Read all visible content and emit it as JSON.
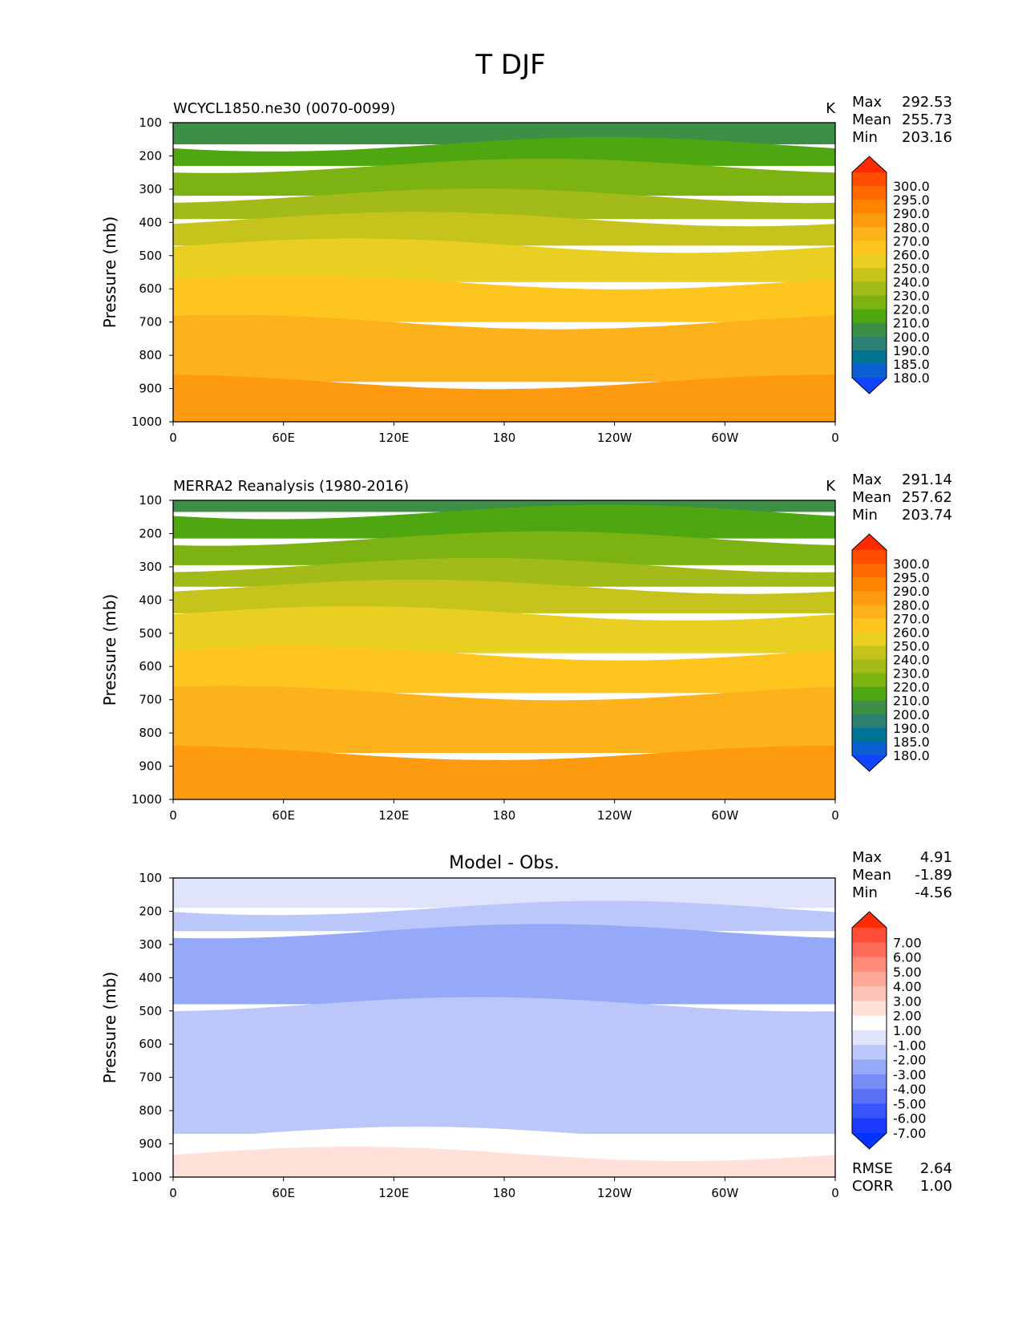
{
  "figure": {
    "title": "T DJF"
  },
  "chart_data": [
    {
      "type": "heatmap",
      "title": "WCYCL1850.ne30 (0070-0099)",
      "units": "K",
      "ylabel": "Pressure (mb)",
      "xlabel": "",
      "xticks": [
        "0",
        "60E",
        "120E",
        "180",
        "120W",
        "60W",
        "0"
      ],
      "yticks": [
        "100",
        "200",
        "300",
        "400",
        "500",
        "600",
        "700",
        "800",
        "900",
        "1000"
      ],
      "ylim": [
        1000,
        100
      ],
      "stats": {
        "max_label": "Max",
        "max": "292.53",
        "mean_label": "Mean",
        "mean": "255.73",
        "min_label": "Min",
        "min": "203.16"
      },
      "colorbar": {
        "labels": [
          "300.0",
          "295.0",
          "290.0",
          "280.0",
          "270.0",
          "260.0",
          "250.0",
          "240.0",
          "230.0",
          "220.0",
          "210.0",
          "200.0",
          "190.0",
          "185.0",
          "180.0"
        ],
        "colors": [
          "#ff2a00",
          "#ff4d00",
          "#ff6a00",
          "#ff8400",
          "#fe9a10",
          "#fdb11a",
          "#fdc51e",
          "#e8cf22",
          "#c6c31c",
          "#a2bb18",
          "#7cb312",
          "#4ea611",
          "#3c8f45",
          "#2e8072",
          "#017394",
          "#0b5fd1",
          "#1144ff"
        ]
      },
      "layers": [
        {
          "pressure_top": 100,
          "pressure_bottom": 165,
          "color": "#3c8f45"
        },
        {
          "pressure_top": 165,
          "pressure_bottom": 230,
          "color": "#4ea611"
        },
        {
          "pressure_top": 230,
          "pressure_bottom": 320,
          "color": "#7cb312"
        },
        {
          "pressure_top": 320,
          "pressure_bottom": 390,
          "color": "#a2bb18"
        },
        {
          "pressure_top": 390,
          "pressure_bottom": 470,
          "color": "#c6c31c"
        },
        {
          "pressure_top": 470,
          "pressure_bottom": 580,
          "color": "#e8cf22"
        },
        {
          "pressure_top": 580,
          "pressure_bottom": 700,
          "color": "#fdc51e"
        },
        {
          "pressure_top": 700,
          "pressure_bottom": 880,
          "color": "#fdb11a"
        },
        {
          "pressure_top": 880,
          "pressure_bottom": 1000,
          "color": "#fe9a10"
        }
      ]
    },
    {
      "type": "heatmap",
      "title": "MERRA2 Reanalysis (1980-2016)",
      "units": "K",
      "ylabel": "Pressure (mb)",
      "xlabel": "",
      "xticks": [
        "0",
        "60E",
        "120E",
        "180",
        "120W",
        "60W",
        "0"
      ],
      "yticks": [
        "100",
        "200",
        "300",
        "400",
        "500",
        "600",
        "700",
        "800",
        "900",
        "1000"
      ],
      "ylim": [
        1000,
        100
      ],
      "stats": {
        "max_label": "Max",
        "max": "291.14",
        "mean_label": "Mean",
        "mean": "257.62",
        "min_label": "Min",
        "min": "203.74"
      },
      "colorbar": {
        "labels": [
          "300.0",
          "295.0",
          "290.0",
          "280.0",
          "270.0",
          "260.0",
          "250.0",
          "240.0",
          "230.0",
          "220.0",
          "210.0",
          "200.0",
          "190.0",
          "185.0",
          "180.0"
        ],
        "colors": [
          "#ff2a00",
          "#ff4d00",
          "#ff6a00",
          "#ff8400",
          "#fe9a10",
          "#fdb11a",
          "#fdc51e",
          "#e8cf22",
          "#c6c31c",
          "#a2bb18",
          "#7cb312",
          "#4ea611",
          "#3c8f45",
          "#2e8072",
          "#017394",
          "#0b5fd1",
          "#1144ff"
        ]
      },
      "layers": [
        {
          "pressure_top": 100,
          "pressure_bottom": 135,
          "color": "#3c8f45"
        },
        {
          "pressure_top": 135,
          "pressure_bottom": 215,
          "color": "#4ea611"
        },
        {
          "pressure_top": 215,
          "pressure_bottom": 295,
          "color": "#7cb312"
        },
        {
          "pressure_top": 295,
          "pressure_bottom": 360,
          "color": "#a2bb18"
        },
        {
          "pressure_top": 360,
          "pressure_bottom": 440,
          "color": "#c6c31c"
        },
        {
          "pressure_top": 440,
          "pressure_bottom": 560,
          "color": "#e8cf22"
        },
        {
          "pressure_top": 560,
          "pressure_bottom": 680,
          "color": "#fdc51e"
        },
        {
          "pressure_top": 680,
          "pressure_bottom": 860,
          "color": "#fdb11a"
        },
        {
          "pressure_top": 860,
          "pressure_bottom": 1000,
          "color": "#fe9a10"
        }
      ]
    },
    {
      "type": "heatmap",
      "title": "Model - Obs.",
      "units": "",
      "ylabel": "Pressure (mb)",
      "xlabel": "",
      "xticks": [
        "0",
        "60E",
        "120E",
        "180",
        "120W",
        "60W",
        "0"
      ],
      "yticks": [
        "100",
        "200",
        "300",
        "400",
        "500",
        "600",
        "700",
        "800",
        "900",
        "1000"
      ],
      "ylim": [
        1000,
        100
      ],
      "stats": {
        "max_label": "Max",
        "max": "4.91",
        "mean_label": "Mean",
        "mean": "-1.89",
        "min_label": "Min",
        "min": "-4.56"
      },
      "metrics": {
        "rmse_label": "RMSE",
        "rmse": "2.64",
        "corr_label": "CORR",
        "corr": "1.00"
      },
      "colorbar": {
        "labels": [
          "7.00",
          "6.00",
          "5.00",
          "4.00",
          "3.00",
          "2.00",
          "1.00",
          "-1.00",
          "-2.00",
          "-3.00",
          "-4.00",
          "-5.00",
          "-6.00",
          "-7.00"
        ],
        "colors": [
          "#ff2a00",
          "#ff4d3a",
          "#ff6b5a",
          "#ff8b78",
          "#ffa898",
          "#ffc4b8",
          "#ffe1da",
          "#ffffff",
          "#dfe4fc",
          "#bbc6fb",
          "#96a9f8",
          "#788cf5",
          "#5a70f7",
          "#3854fb",
          "#1a3bff",
          "#0033ff"
        ]
      },
      "layers": [
        {
          "pressure_top": 100,
          "pressure_bottom": 190,
          "color": "#dfe4fc"
        },
        {
          "pressure_top": 190,
          "pressure_bottom": 260,
          "color": "#bbc6fb"
        },
        {
          "pressure_top": 260,
          "pressure_bottom": 480,
          "color": "#96a9f8"
        },
        {
          "pressure_top": 480,
          "pressure_bottom": 870,
          "color": "#bbc6fb"
        },
        {
          "pressure_top": 870,
          "pressure_bottom": 930,
          "color": "#ffffff"
        },
        {
          "pressure_top": 930,
          "pressure_bottom": 1000,
          "color": "#ffe1da"
        }
      ]
    }
  ]
}
